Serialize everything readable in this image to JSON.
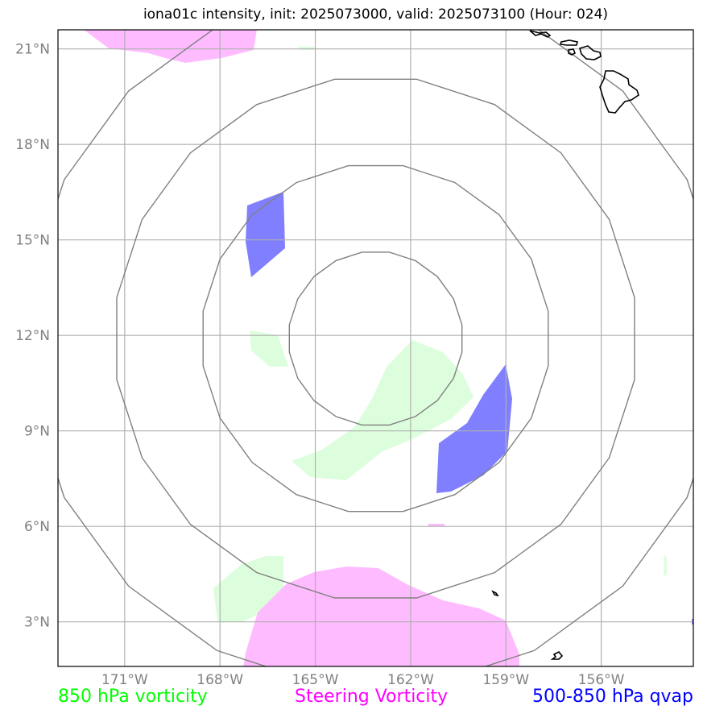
{
  "title": "iona01c intensity, init: 2025073000, valid: 2025073100 (Hour: 024)",
  "map": {
    "lon_range": [
      -173.1,
      -153.1
    ],
    "lat_range": [
      1.6,
      21.6
    ],
    "lon_ticks": [
      {
        "value": -171,
        "label": "171°W"
      },
      {
        "value": -168,
        "label": "168°W"
      },
      {
        "value": -165,
        "label": "165°W"
      },
      {
        "value": -162,
        "label": "162°W"
      },
      {
        "value": -159,
        "label": "159°W"
      },
      {
        "value": -156,
        "label": "156°W"
      }
    ],
    "lat_ticks": [
      {
        "value": 3,
        "label": "3°N"
      },
      {
        "value": 6,
        "label": "6°N"
      },
      {
        "value": 9,
        "label": "9°N"
      },
      {
        "value": 12,
        "label": "12°N"
      },
      {
        "value": 15,
        "label": "15°N"
      },
      {
        "value": 18,
        "label": "18°N"
      },
      {
        "value": 21,
        "label": "21°N"
      }
    ],
    "grid": true,
    "range_rings": {
      "center": [
        -163.1,
        11.9
      ],
      "radii_deg": [
        2.75,
        5.5,
        8.25,
        11.0
      ]
    },
    "colors": {
      "vorticity_850": "#ddfedd",
      "steering_vorticity": "#ffbbff",
      "qvap": "#7f7fff",
      "coast": "#000000",
      "grid": "#b0b0b0",
      "rings": "#808080"
    }
  },
  "legend": [
    {
      "label": "850 hPa vorticity",
      "color": "#00ff00"
    },
    {
      "label": "Steering Vorticity",
      "color": "#ff00ff"
    },
    {
      "label": "500-850 hPa qvap",
      "color": "#0000ff"
    }
  ]
}
